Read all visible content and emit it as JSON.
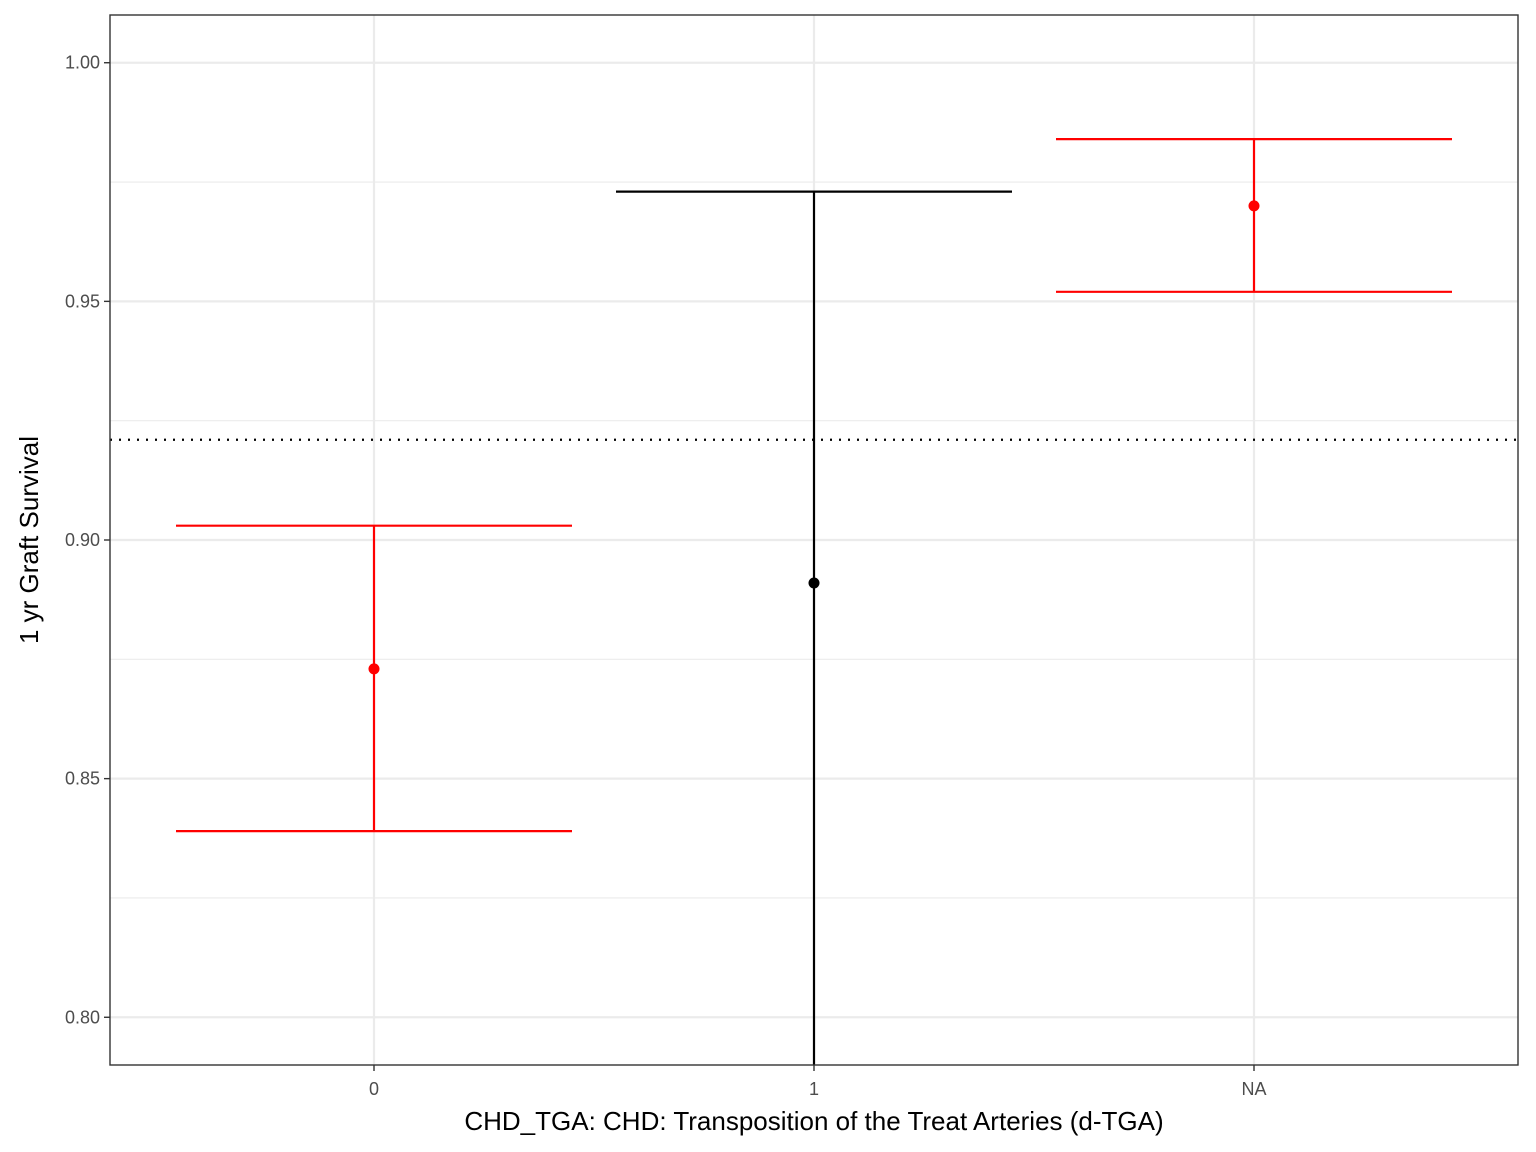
{
  "chart_data": {
    "type": "scatter",
    "xlabel": "CHD_TGA: CHD: Transposition of the Treat Arteries (d-TGA)",
    "ylabel": "1 yr Graft Survival",
    "categories": [
      "0",
      "1",
      "NA"
    ],
    "ylim": [
      0.79,
      1.01
    ],
    "yticks": [
      "0.80",
      "0.85",
      "0.90",
      "0.95",
      "1.00"
    ],
    "reference_line": {
      "y": 0.921,
      "style": "dotted",
      "color": "#000000"
    },
    "points": [
      {
        "category": "0",
        "estimate": 0.873,
        "lower": 0.839,
        "upper": 0.903,
        "color": "#ff0000"
      },
      {
        "category": "1",
        "estimate": 0.891,
        "lower": 0.79,
        "upper": 0.973,
        "color": "#000000"
      },
      {
        "category": "NA",
        "estimate": 0.97,
        "lower": 0.952,
        "upper": 0.984,
        "color": "#ff0000"
      }
    ],
    "grid": true,
    "theme": {
      "panel_border": "#333333",
      "grid_color": "#ebebeb",
      "background": "#ffffff"
    }
  }
}
